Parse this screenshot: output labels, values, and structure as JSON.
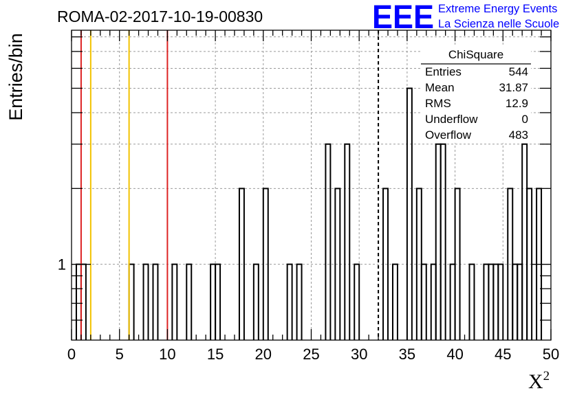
{
  "chart_data": {
    "type": "bar",
    "title": "ROMA-02-2017-10-19-00830",
    "ylabel": "Entries/bin",
    "xlabel_base": "X",
    "xlabel_sup": "2",
    "xlim": [
      0,
      50
    ],
    "ylim_log": [
      0.5,
      8.5
    ],
    "y_log": true,
    "grid": true,
    "bin_width": 0.5,
    "xticks": [
      0,
      5,
      10,
      15,
      20,
      25,
      30,
      35,
      40,
      45,
      50
    ],
    "xtick_labels": [
      "0",
      "5",
      "10",
      "15",
      "20",
      "25",
      "30",
      "35",
      "40",
      "45",
      "50"
    ],
    "ytick_label": {
      "value": 1,
      "text": "1"
    },
    "bins": [
      {
        "x": 0.5,
        "y": 1
      },
      {
        "x": 1.0,
        "y": 1
      },
      {
        "x": 6.0,
        "y": 1
      },
      {
        "x": 7.5,
        "y": 1
      },
      {
        "x": 8.5,
        "y": 1
      },
      {
        "x": 10.5,
        "y": 1
      },
      {
        "x": 12.0,
        "y": 1
      },
      {
        "x": 14.5,
        "y": 1
      },
      {
        "x": 15.0,
        "y": 1
      },
      {
        "x": 17.5,
        "y": 2
      },
      {
        "x": 19.0,
        "y": 1
      },
      {
        "x": 20.0,
        "y": 2
      },
      {
        "x": 22.5,
        "y": 1
      },
      {
        "x": 23.5,
        "y": 1
      },
      {
        "x": 26.5,
        "y": 3
      },
      {
        "x": 27.5,
        "y": 2
      },
      {
        "x": 28.5,
        "y": 3
      },
      {
        "x": 29.5,
        "y": 1
      },
      {
        "x": 32.5,
        "y": 2
      },
      {
        "x": 33.5,
        "y": 1
      },
      {
        "x": 35.0,
        "y": 5
      },
      {
        "x": 36.0,
        "y": 2
      },
      {
        "x": 36.5,
        "y": 1
      },
      {
        "x": 37.5,
        "y": 1
      },
      {
        "x": 38.0,
        "y": 3
      },
      {
        "x": 38.5,
        "y": 3
      },
      {
        "x": 39.5,
        "y": 1
      },
      {
        "x": 40.0,
        "y": 2
      },
      {
        "x": 41.5,
        "y": 1
      },
      {
        "x": 43.0,
        "y": 1
      },
      {
        "x": 43.5,
        "y": 1
      },
      {
        "x": 44.0,
        "y": 1
      },
      {
        "x": 44.5,
        "y": 1
      },
      {
        "x": 45.5,
        "y": 2
      },
      {
        "x": 46.0,
        "y": 1
      },
      {
        "x": 46.5,
        "y": 1
      },
      {
        "x": 47.0,
        "y": 3
      },
      {
        "x": 47.5,
        "y": 2
      },
      {
        "x": 48.5,
        "y": 2
      }
    ],
    "vertical_lines": [
      {
        "x": 1,
        "color": "#dd2222",
        "style": "solid"
      },
      {
        "x": 2,
        "color": "#f2c200",
        "style": "solid"
      },
      {
        "x": 6,
        "color": "#f2c200",
        "style": "solid"
      },
      {
        "x": 10,
        "color": "#dd2222",
        "style": "solid"
      },
      {
        "x": 32,
        "color": "#000000",
        "style": "dashed"
      }
    ],
    "stats_box": {
      "name": "ChiSquare",
      "rows": [
        {
          "label": "Entries",
          "value": "544"
        },
        {
          "label": "Mean",
          "value": "31.87"
        },
        {
          "label": "RMS",
          "value": "12.9"
        },
        {
          "label": "Underflow",
          "value": "0"
        },
        {
          "label": "Overflow",
          "value": "483"
        }
      ]
    }
  },
  "logo": {
    "mark": "EEE",
    "line1": "Extreme Energy Events",
    "line2": "La Scienza nelle Scuole",
    "color": "#0000ff"
  }
}
